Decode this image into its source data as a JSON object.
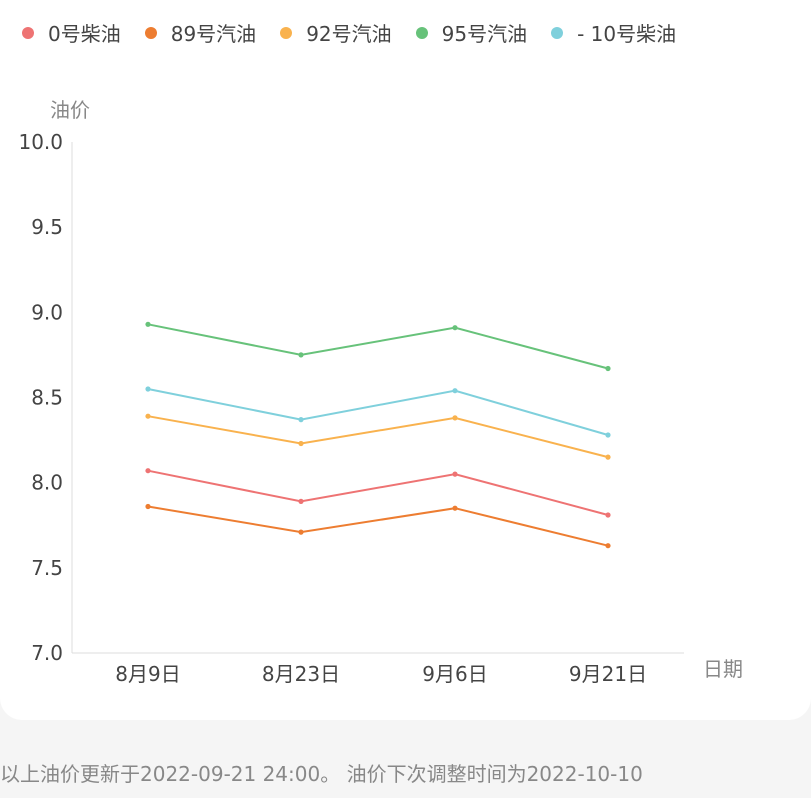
{
  "chart_data": {
    "type": "line",
    "ylabel": "油价",
    "xlabel": "日期",
    "ylim": [
      7.0,
      10.0
    ],
    "yticks": [
      "7.0",
      "7.5",
      "8.0",
      "8.5",
      "9.0",
      "9.5",
      "10.0"
    ],
    "categories": [
      "8月9日",
      "8月23日",
      "9月6日",
      "9月21日"
    ],
    "legend_position": "top",
    "series": [
      {
        "name": "0号柴油",
        "color": "#ee7373",
        "values": [
          8.07,
          7.89,
          8.05,
          7.81
        ]
      },
      {
        "name": "89号汽油",
        "color": "#ed7d31",
        "values": [
          7.86,
          7.71,
          7.85,
          7.63
        ]
      },
      {
        "name": "92号汽油",
        "color": "#f9b24e",
        "values": [
          8.39,
          8.23,
          8.38,
          8.15
        ]
      },
      {
        "name": "95号汽油",
        "color": "#67c27a",
        "values": [
          8.93,
          8.75,
          8.91,
          8.67
        ]
      },
      {
        "name": "- 10号柴油",
        "color": "#7fd0dc",
        "values": [
          8.55,
          8.37,
          8.54,
          8.28
        ]
      }
    ]
  },
  "footer_text": "以上油价更新于2022-09-21 24:00。 油价下次调整时间为2022-10-10"
}
